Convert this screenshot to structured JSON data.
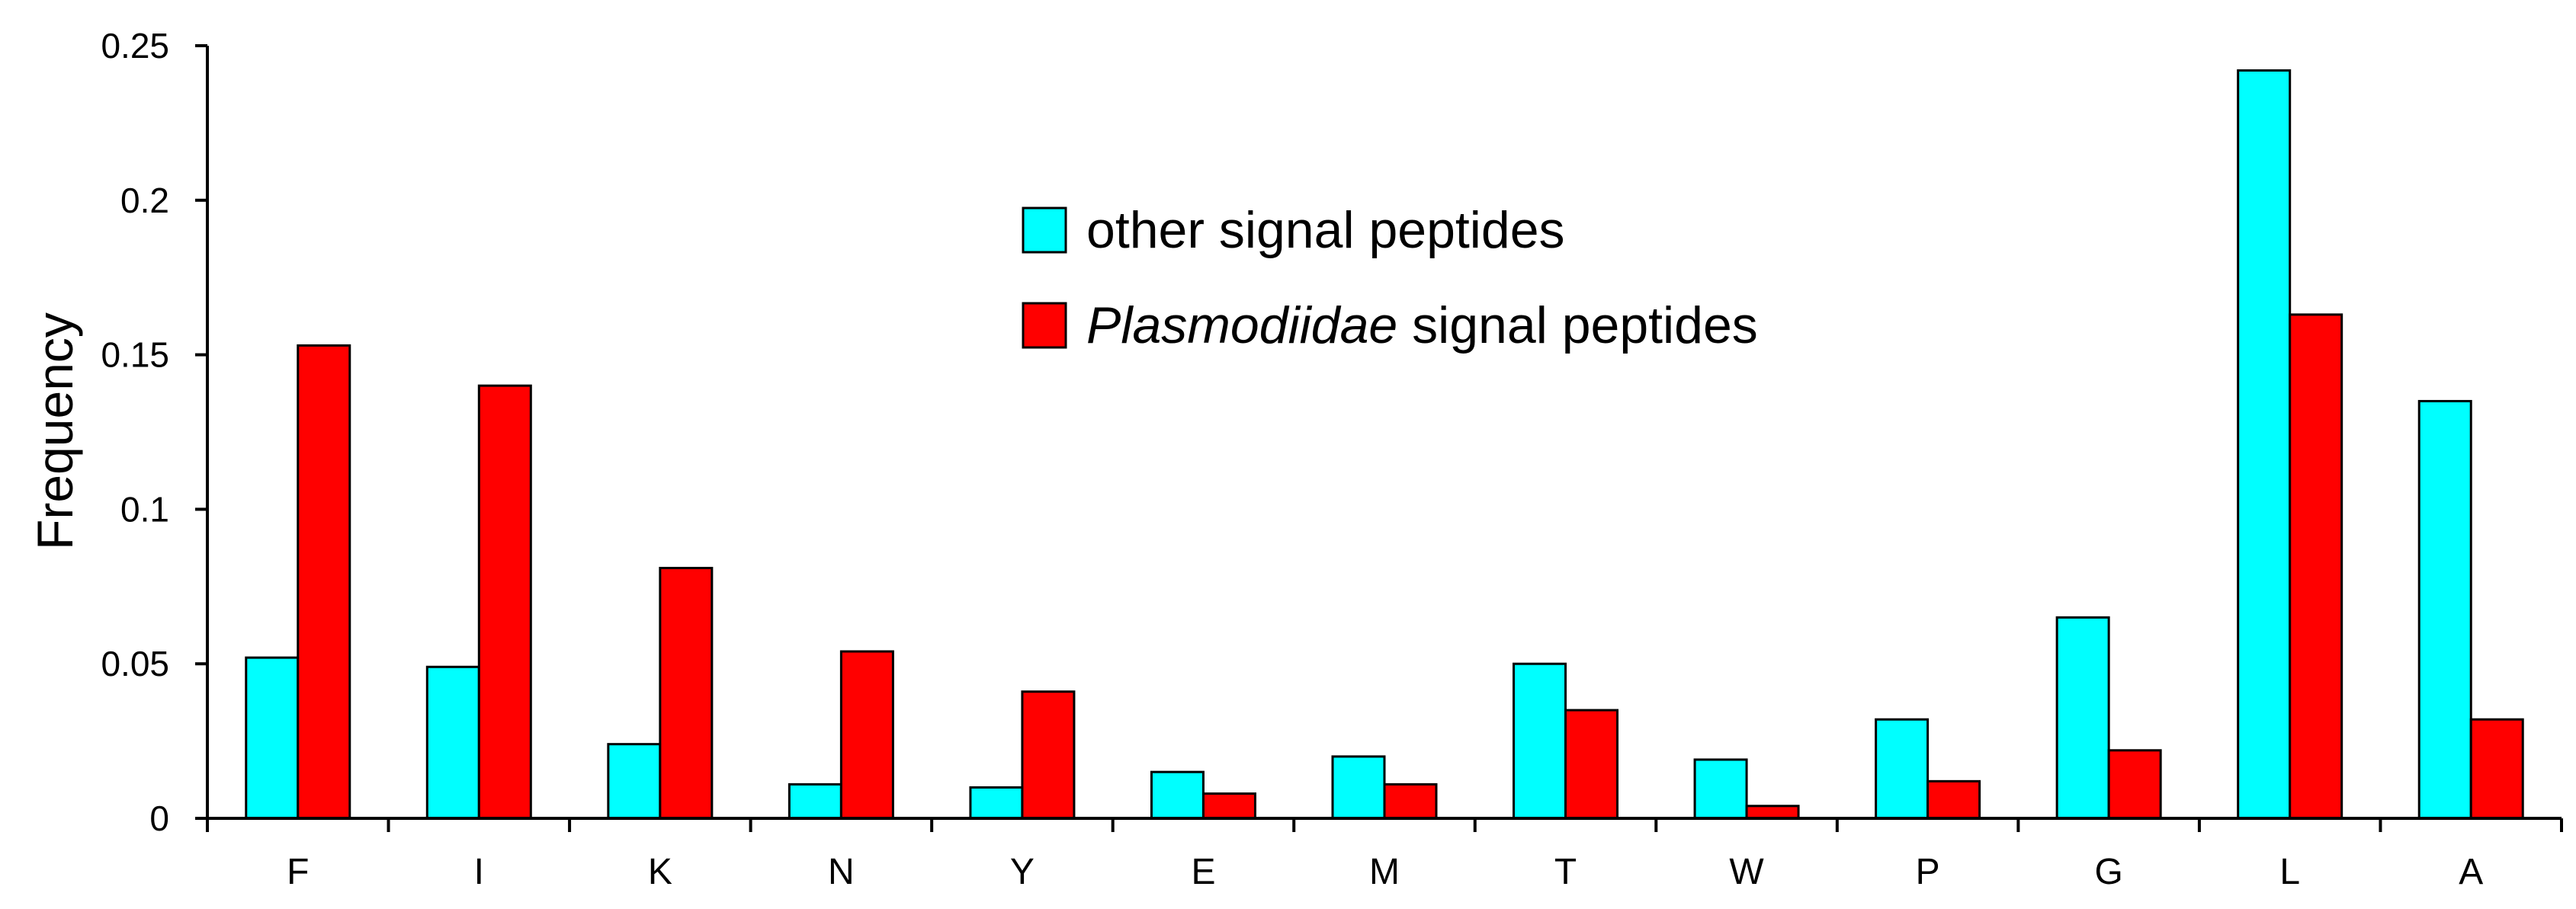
{
  "chart_data": {
    "type": "bar",
    "title": "",
    "xlabel": "",
    "ylabel": "Frequency",
    "ylim": [
      0,
      0.25
    ],
    "yticks": [
      "0",
      "0.05",
      "0.1",
      "0.15",
      "0.2",
      "0.25"
    ],
    "yticks_values": [
      0,
      0.05,
      0.1,
      0.15,
      0.2,
      0.25
    ],
    "grid": false,
    "legend_position": "top-center",
    "categories": [
      "F",
      "I",
      "K",
      "N",
      "Y",
      "E",
      "M",
      "T",
      "W",
      "P",
      "G",
      "L",
      "A"
    ],
    "series": [
      {
        "name": "other signal peptides",
        "italic_part": "",
        "suffix": "",
        "color": "#00FFFF",
        "values": [
          0.052,
          0.049,
          0.024,
          0.011,
          0.01,
          0.015,
          0.02,
          0.05,
          0.019,
          0.032,
          0.065,
          0.242,
          0.135
        ]
      },
      {
        "name": "Plasmodiidae signal peptides",
        "italic_part": "Plasmodiidae",
        "suffix": " signal peptides",
        "color": "#FF0000",
        "values": [
          0.153,
          0.14,
          0.081,
          0.054,
          0.041,
          0.008,
          0.011,
          0.035,
          0.004,
          0.012,
          0.022,
          0.163,
          0.032
        ]
      }
    ]
  }
}
